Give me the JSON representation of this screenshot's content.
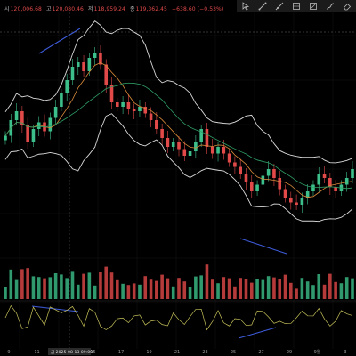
{
  "ohlc": {
    "open_label": "시",
    "open": "120,006.68",
    "high_label": "고",
    "high": "120,080.46",
    "low_label": "저",
    "low": "118,959.24",
    "close_label": "종",
    "close": "119,362.45",
    "change": "−638.60 (−0.53%)"
  },
  "toolbar": {
    "icons": [
      "cursor-icon",
      "trend-line-icon",
      "ray-icon",
      "parallel-channel-icon",
      "measure-icon",
      "brush-icon",
      "eraser-icon"
    ]
  },
  "colors": {
    "up": "#3cbf8a",
    "down": "#e24a4a",
    "bollinger": "#d9d9d9",
    "ma_short": "#d98a3a",
    "ma_long": "#2f9e66",
    "rsi": "#c7c25a",
    "divergence": "#3d5bd9"
  },
  "x_axis": {
    "tick_labels": [
      "9",
      "11",
      "13",
      "15",
      "17",
      "19",
      "21",
      "23",
      "25",
      "27",
      "29",
      "9월",
      "3"
    ],
    "crosshair_date": "금 2025-08-13 09:00"
  },
  "chart_data": {
    "type": "candlestick",
    "indicators": [
      "Bollinger Bands",
      "Moving Average (short)",
      "Moving Average (long)",
      "Volume",
      "RSI"
    ],
    "closes_normalized_shape": [
      0.55,
      0.62,
      0.66,
      0.6,
      0.52,
      0.58,
      0.61,
      0.57,
      0.63,
      0.68,
      0.74,
      0.8,
      0.86,
      0.88,
      0.84,
      0.9,
      0.92,
      0.87,
      0.78,
      0.7,
      0.68,
      0.7,
      0.67,
      0.66,
      0.68,
      0.65,
      0.62,
      0.58,
      0.54,
      0.5,
      0.52,
      0.49,
      0.46,
      0.48,
      0.52,
      0.58,
      0.5,
      0.47,
      0.5,
      0.47,
      0.43,
      0.41,
      0.38,
      0.34,
      0.3,
      0.33,
      0.37,
      0.4,
      0.36,
      0.31,
      0.27,
      0.25,
      0.24,
      0.27,
      0.3,
      0.33,
      0.38,
      0.36,
      0.32,
      0.3,
      0.33,
      0.36,
      0.4
    ]
  }
}
